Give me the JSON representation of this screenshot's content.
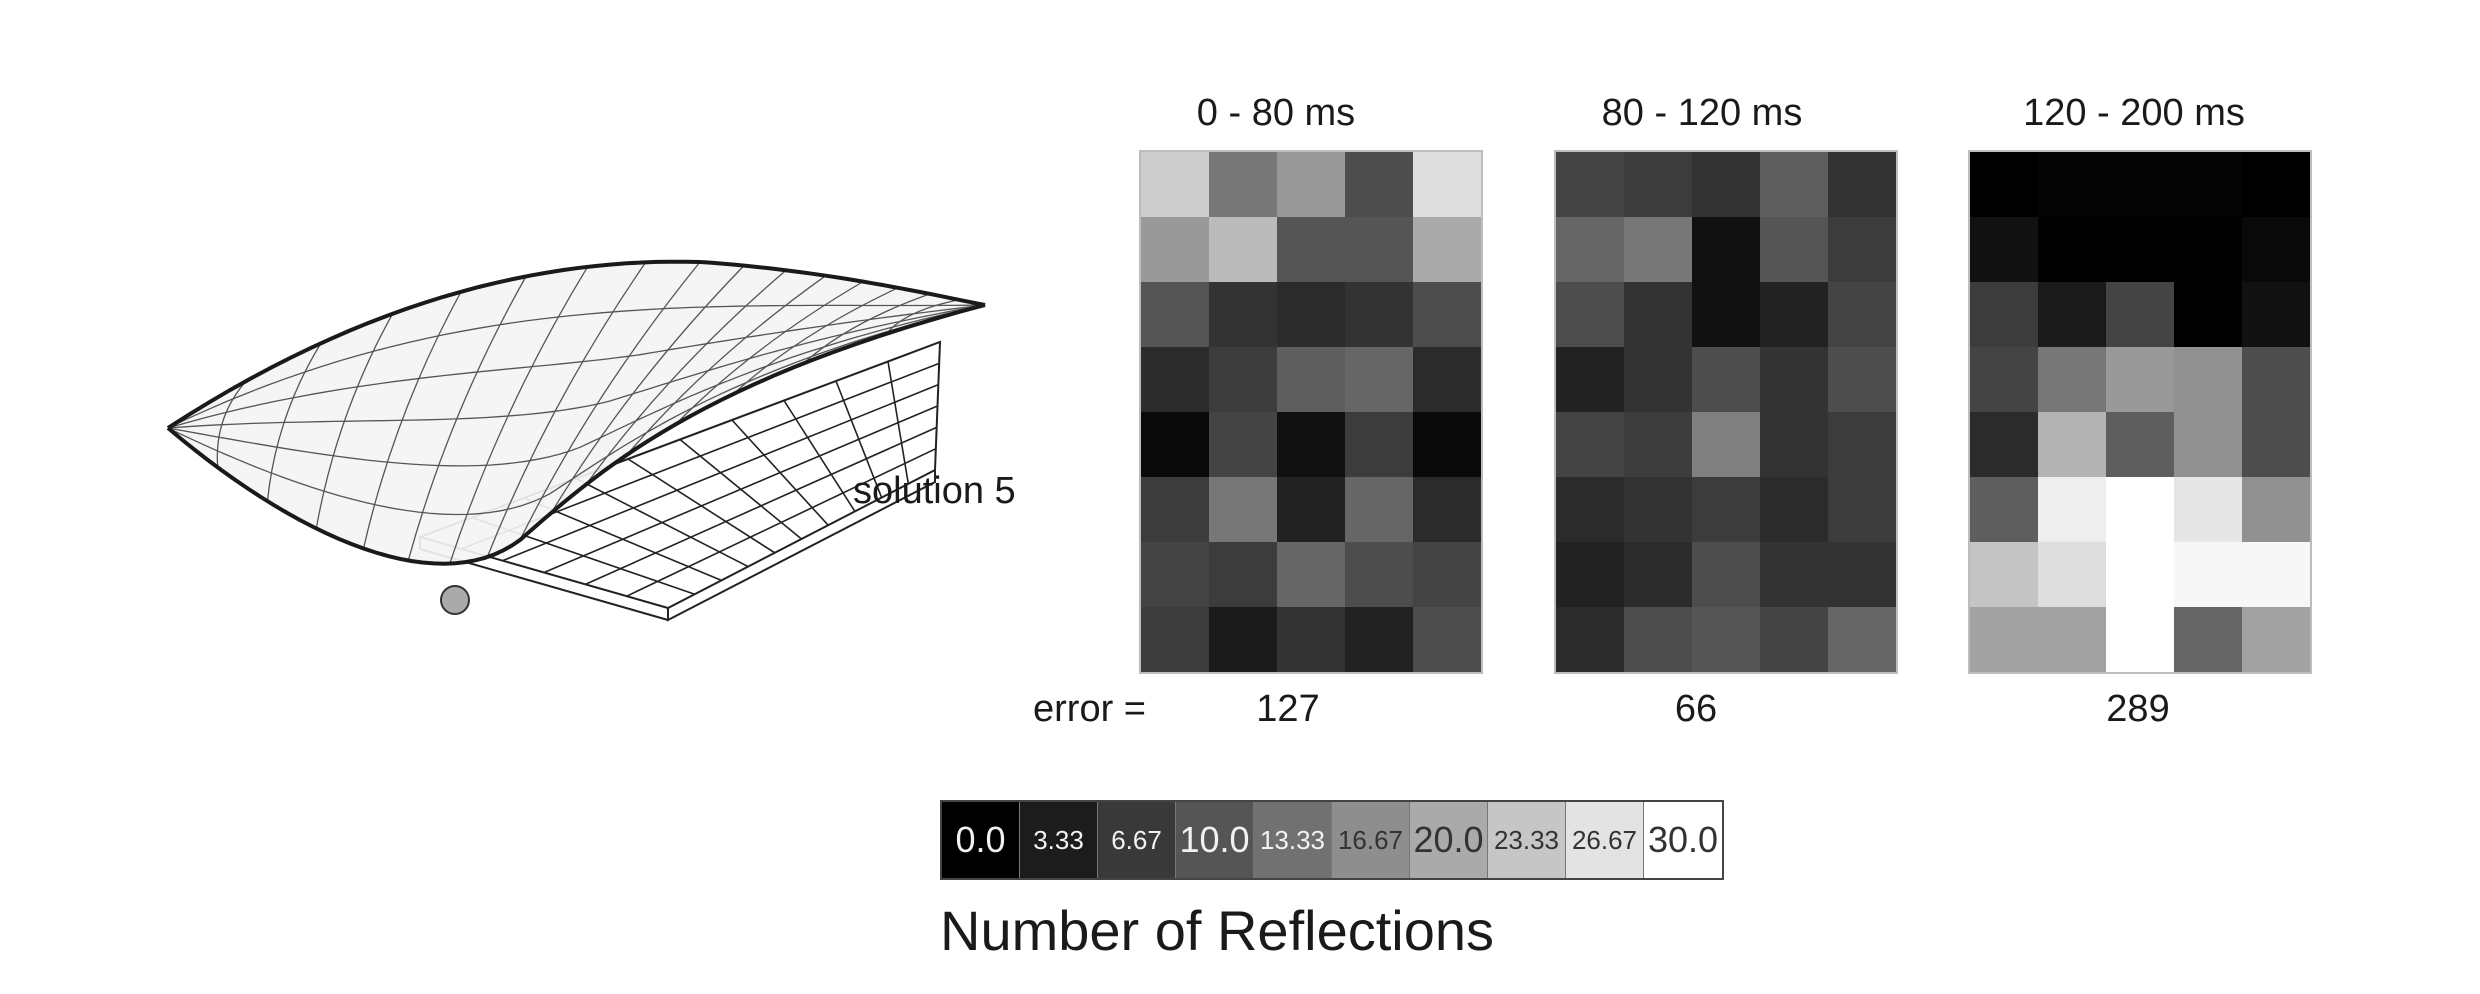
{
  "solution_label": "solution 5",
  "error_label": "error =",
  "panels": [
    {
      "title": "0 - 80 ms",
      "error": "127",
      "cells": [
        [
          24,
          14,
          18,
          9,
          26
        ],
        [
          18,
          22,
          10,
          10,
          20
        ],
        [
          10,
          6,
          5,
          6,
          9
        ],
        [
          5,
          7,
          11,
          12,
          5
        ],
        [
          1,
          8,
          2,
          7,
          1
        ],
        [
          7,
          14,
          4,
          12,
          5
        ],
        [
          8,
          7,
          12,
          9,
          8
        ],
        [
          7,
          3,
          6,
          4,
          9
        ]
      ]
    },
    {
      "title": "80 - 120 ms",
      "error": "66",
      "cells": [
        [
          8,
          7,
          6,
          11,
          6
        ],
        [
          12,
          14,
          2,
          10,
          7
        ],
        [
          9,
          6,
          2,
          4,
          8
        ],
        [
          4,
          6,
          9,
          6,
          9
        ],
        [
          8,
          7,
          15,
          6,
          7
        ],
        [
          5,
          6,
          7,
          5,
          7
        ],
        [
          4,
          5,
          9,
          6,
          6
        ],
        [
          5,
          9,
          10,
          8,
          12
        ]
      ]
    },
    {
      "title": "120 - 200 ms",
      "error": "289",
      "cells": [
        [
          0,
          0.5,
          0.5,
          0.5,
          0
        ],
        [
          2,
          0,
          0,
          0,
          1
        ],
        [
          7,
          3,
          8,
          0,
          2
        ],
        [
          8,
          14,
          18,
          17,
          9
        ],
        [
          5,
          21,
          11,
          17,
          9
        ],
        [
          11,
          28,
          30,
          27,
          17
        ],
        [
          23,
          26,
          30,
          29,
          29
        ],
        [
          19,
          19,
          30,
          12,
          19
        ]
      ]
    }
  ],
  "legend": {
    "title": "Number of Reflections",
    "max": 30,
    "labels": [
      "0.0",
      "3.33",
      "6.67",
      "10.0",
      "13.33",
      "16.67",
      "20.0",
      "23.33",
      "26.67",
      "30.0"
    ]
  }
}
